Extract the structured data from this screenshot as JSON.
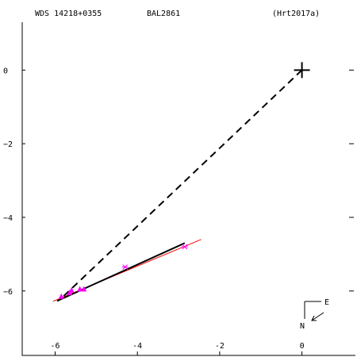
{
  "header": {
    "wds_id": "WDS 14218+0355",
    "discoverer": "BAL2861",
    "reference": "(Hrt2017a)"
  },
  "compass": {
    "east_label": "E",
    "north_label": "N"
  },
  "chart_data": {
    "type": "scatter",
    "xlim": [
      -6.8,
      1.3
    ],
    "ylim": [
      -7.75,
      1.3
    ],
    "x_ticks": [
      -6,
      -4,
      -2,
      0
    ],
    "x_tick_labels": [
      "-6",
      "-4",
      "-2",
      "0"
    ],
    "y_ticks": [
      0,
      -2,
      -4,
      -6
    ],
    "y_tick_labels": [
      "0",
      "−2",
      "−4",
      "−6"
    ],
    "primary": {
      "x": 0,
      "y": 0
    },
    "observations": [
      {
        "x": -5.85,
        "y": -6.15
      },
      {
        "x": -5.65,
        "y": -6.05
      },
      {
        "x": -5.6,
        "y": -5.98
      },
      {
        "x": -5.4,
        "y": -5.95
      },
      {
        "x": -5.3,
        "y": -5.95
      },
      {
        "x": -4.3,
        "y": -5.35
      },
      {
        "x": -2.85,
        "y": -4.8
      }
    ],
    "observation_markers": [
      "triangle",
      "triangle",
      "triangle",
      "triangle",
      "triangle",
      "star",
      "star"
    ],
    "orbit_fit": {
      "x": [
        -5.95,
        -2.85
      ],
      "y": [
        -6.27,
        -4.7
      ]
    },
    "linear_fit": {
      "x": [
        -6.05,
        -2.45
      ],
      "y": [
        -6.28,
        -4.6
      ]
    },
    "dashed_line": {
      "x": [
        0,
        -5.85
      ],
      "y": [
        0,
        -6.2
      ]
    },
    "colors": {
      "axes": "#000000",
      "orbit_fit": "#000000",
      "linear_fit": "#ff0000",
      "observations": "#ff00ff",
      "dashed_line": "#000000"
    }
  }
}
